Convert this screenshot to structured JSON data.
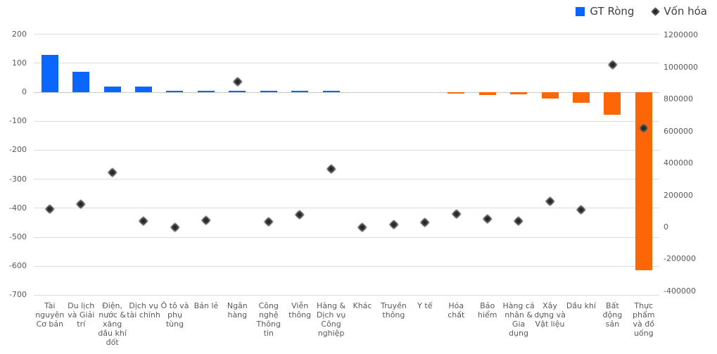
{
  "legend": {
    "items": [
      {
        "label": "GT Ròng",
        "marker": "blue-square"
      },
      {
        "label": "Vốn hóa",
        "marker": "dark-diamond"
      }
    ]
  },
  "colors": {
    "bar_positive": "#0a66fe",
    "bar_negative": "#fc6606",
    "marker": "#3d3d3d",
    "axis_text": "#595959",
    "legend_text": "#404040",
    "gridline": "#dcdcdc",
    "background": "#ffffff"
  },
  "chart_data": {
    "type": "bar",
    "subtype": "dual-axis column chart with diamond scatter overlay",
    "title": "",
    "categories": [
      "Tài nguyên Cơ bản",
      "Du lịch và Giải trí",
      "Điện, nước & xăng dầu khí đốt",
      "Dịch vụ tài chính",
      "Ô tô và phụ tùng",
      "Bán lẻ",
      "Ngân hàng",
      "Công nghệ Thông tin",
      "Viễn thông",
      "Hàng & Dịch vụ Công nghiệp",
      "Khác",
      "Truyền thông",
      "Y tế",
      "Hóa chất",
      "Bảo hiểm",
      "Hàng cá nhân & Gia dụng",
      "Xây dựng và Vật liệu",
      "Dầu khí",
      "Bất động sản",
      "Thực phẩm và đồ uống"
    ],
    "series": [
      {
        "name": "GT Ròng",
        "type": "bar",
        "axis": "left",
        "values": [
          128,
          70,
          20,
          19,
          6,
          5,
          6,
          4,
          5,
          5,
          0,
          0,
          0,
          -6,
          -10,
          -8,
          -22,
          -37,
          -78,
          -614
        ]
      },
      {
        "name": "Vốn hóa",
        "type": "scatter",
        "marker": "diamond",
        "axis": "right",
        "values": [
          115000,
          148000,
          345000,
          42000,
          3000,
          45000,
          912000,
          38000,
          79000,
          365000,
          0,
          20000,
          32000,
          86000,
          54000,
          42000,
          164000,
          111000,
          1020000,
          624000
        ]
      }
    ],
    "left_axis": {
      "min": -700,
      "max": 200,
      "step": 100,
      "ticks": [
        "200",
        "100",
        "0",
        "-100",
        "-200",
        "-300",
        "-400",
        "-500",
        "-600",
        "-700"
      ]
    },
    "right_axis": {
      "min": -400000,
      "max": 1200000,
      "step": 200000,
      "ticks": [
        "1200000",
        "1000000",
        "800000",
        "600000",
        "400000",
        "200000",
        "0",
        "-200000",
        "-400000"
      ]
    },
    "grid": true,
    "legend_position": "top-right"
  }
}
